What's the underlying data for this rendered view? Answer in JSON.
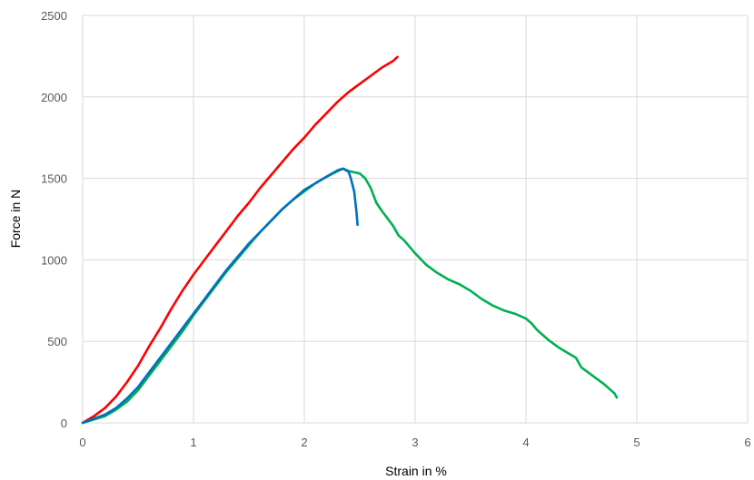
{
  "chart_data": {
    "type": "line",
    "xlabel": "Strain in %",
    "ylabel": "Force in N",
    "xlim": [
      0,
      6
    ],
    "ylim": [
      0,
      2500
    ],
    "x_ticks": [
      "0",
      "1",
      "2",
      "3",
      "4",
      "5",
      "6"
    ],
    "y_ticks": [
      "0",
      "500",
      "1000",
      "1500",
      "2000",
      "2500"
    ],
    "grid": true,
    "colors": {
      "grid": "#d9d9d9",
      "tick_text": "#595959"
    },
    "series": [
      {
        "color": "#ff0000",
        "points": [
          [
            0,
            0
          ],
          [
            0.1,
            40
          ],
          [
            0.2,
            90
          ],
          [
            0.3,
            160
          ],
          [
            0.4,
            250
          ],
          [
            0.5,
            350
          ],
          [
            0.6,
            470
          ],
          [
            0.7,
            580
          ],
          [
            0.8,
            700
          ],
          [
            0.9,
            810
          ],
          [
            1.0,
            910
          ],
          [
            1.1,
            1000
          ],
          [
            1.2,
            1090
          ],
          [
            1.3,
            1180
          ],
          [
            1.4,
            1270
          ],
          [
            1.5,
            1350
          ],
          [
            1.6,
            1440
          ],
          [
            1.7,
            1520
          ],
          [
            1.8,
            1600
          ],
          [
            1.9,
            1680
          ],
          [
            2.0,
            1750
          ],
          [
            2.1,
            1830
          ],
          [
            2.2,
            1900
          ],
          [
            2.3,
            1970
          ],
          [
            2.4,
            2030
          ],
          [
            2.5,
            2080
          ],
          [
            2.6,
            2130
          ],
          [
            2.7,
            2180
          ],
          [
            2.8,
            2220
          ],
          [
            2.84,
            2245
          ]
        ]
      },
      {
        "color": "#00b050",
        "points": [
          [
            0,
            0
          ],
          [
            0.1,
            20
          ],
          [
            0.2,
            40
          ],
          [
            0.3,
            80
          ],
          [
            0.4,
            130
          ],
          [
            0.5,
            200
          ],
          [
            0.6,
            290
          ],
          [
            0.7,
            380
          ],
          [
            0.8,
            470
          ],
          [
            0.9,
            560
          ],
          [
            1.0,
            660
          ],
          [
            1.1,
            750
          ],
          [
            1.2,
            840
          ],
          [
            1.3,
            930
          ],
          [
            1.4,
            1010
          ],
          [
            1.5,
            1090
          ],
          [
            1.6,
            1170
          ],
          [
            1.7,
            1240
          ],
          [
            1.8,
            1310
          ],
          [
            1.9,
            1370
          ],
          [
            2.0,
            1420
          ],
          [
            2.1,
            1470
          ],
          [
            2.2,
            1510
          ],
          [
            2.3,
            1550
          ],
          [
            2.35,
            1560
          ],
          [
            2.4,
            1545
          ],
          [
            2.5,
            1530
          ],
          [
            2.55,
            1500
          ],
          [
            2.6,
            1440
          ],
          [
            2.65,
            1350
          ],
          [
            2.7,
            1300
          ],
          [
            2.8,
            1210
          ],
          [
            2.85,
            1150
          ],
          [
            2.9,
            1120
          ],
          [
            3.0,
            1040
          ],
          [
            3.1,
            970
          ],
          [
            3.2,
            920
          ],
          [
            3.3,
            880
          ],
          [
            3.4,
            850
          ],
          [
            3.5,
            810
          ],
          [
            3.6,
            760
          ],
          [
            3.7,
            720
          ],
          [
            3.8,
            690
          ],
          [
            3.9,
            670
          ],
          [
            4.0,
            640
          ],
          [
            4.05,
            610
          ],
          [
            4.1,
            570
          ],
          [
            4.2,
            510
          ],
          [
            4.3,
            460
          ],
          [
            4.4,
            420
          ],
          [
            4.45,
            400
          ],
          [
            4.5,
            340
          ],
          [
            4.6,
            290
          ],
          [
            4.7,
            240
          ],
          [
            4.8,
            180
          ],
          [
            4.82,
            155
          ]
        ]
      },
      {
        "color": "#0070c0",
        "points": [
          [
            0,
            0
          ],
          [
            0.1,
            25
          ],
          [
            0.2,
            50
          ],
          [
            0.3,
            90
          ],
          [
            0.4,
            150
          ],
          [
            0.5,
            220
          ],
          [
            0.6,
            310
          ],
          [
            0.7,
            400
          ],
          [
            0.8,
            490
          ],
          [
            0.9,
            580
          ],
          [
            1.0,
            670
          ],
          [
            1.1,
            760
          ],
          [
            1.2,
            850
          ],
          [
            1.3,
            940
          ],
          [
            1.4,
            1020
          ],
          [
            1.5,
            1100
          ],
          [
            1.6,
            1170
          ],
          [
            1.7,
            1240
          ],
          [
            1.8,
            1310
          ],
          [
            1.9,
            1370
          ],
          [
            2.0,
            1430
          ],
          [
            2.1,
            1470
          ],
          [
            2.2,
            1510
          ],
          [
            2.3,
            1545
          ],
          [
            2.35,
            1560
          ],
          [
            2.4,
            1540
          ],
          [
            2.42,
            1500
          ],
          [
            2.45,
            1420
          ],
          [
            2.47,
            1300
          ],
          [
            2.48,
            1215
          ]
        ]
      }
    ]
  }
}
